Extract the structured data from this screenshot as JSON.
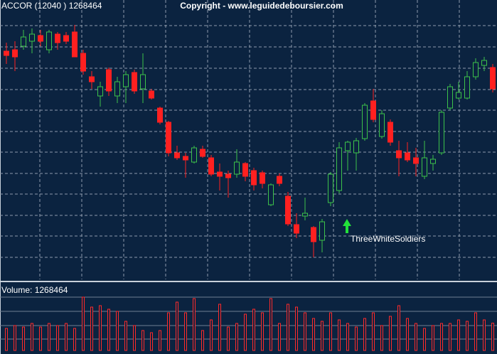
{
  "chart_data": {
    "type": "candlestick",
    "title": "ACCOR (12040 ) 1268464",
    "subtitle": "Copyright - www.leguidedeboursier.com",
    "volume_label": "Volume: 1268464",
    "annotation": "ThreeWhiteSoldiers",
    "up_color": "#3cc24a",
    "down_color": "#ff2020",
    "volume_color": "#ff2a2a",
    "annotation_color": "#22e03a",
    "grid": true,
    "ylim": [
      7,
      400
    ],
    "yticks": [
      38,
      68,
      97,
      127,
      156,
      186,
      215,
      245,
      274,
      304,
      334,
      364
    ],
    "vlim": [
      0,
      3069000
    ],
    "open": [
      328,
      330,
      335,
      342,
      350,
      330,
      352,
      350,
      355,
      325,
      292,
      265,
      302,
      265,
      278,
      298,
      275,
      272,
      248,
      228,
      185,
      180,
      172,
      190,
      178,
      158,
      155,
      155,
      170,
      160,
      157,
      112,
      152,
      124,
      84,
      96,
      80,
      62,
      115,
      132,
      188,
      185,
      205,
      258,
      208,
      228,
      188,
      185,
      178,
      152,
      170,
      185,
      248,
      262,
      262,
      292,
      308,
      305
    ],
    "high": [
      340,
      342,
      358,
      360,
      358,
      358,
      355,
      355,
      365,
      330,
      300,
      285,
      305,
      292,
      300,
      302,
      325,
      275,
      250,
      230,
      195,
      185,
      195,
      195,
      182,
      170,
      160,
      190,
      172,
      164,
      160,
      142,
      156,
      130,
      100,
      122,
      82,
      92,
      158,
      200,
      202,
      206,
      255,
      275,
      245,
      232,
      202,
      200,
      192,
      202,
      182,
      245,
      282,
      285,
      300,
      318,
      320,
      310
    ],
    "low": [
      310,
      300,
      330,
      325,
      335,
      325,
      330,
      338,
      320,
      295,
      275,
      250,
      265,
      255,
      255,
      268,
      255,
      260,
      225,
      180,
      175,
      150,
      170,
      178,
      152,
      132,
      122,
      150,
      145,
      132,
      135,
      110,
      138,
      82,
      65,
      90,
      38,
      45,
      110,
      128,
      160,
      160,
      202,
      228,
      205,
      195,
      152,
      172,
      152,
      148,
      160,
      182,
      245,
      260,
      260,
      288,
      300,
      270
    ],
    "close": [
      322,
      320,
      348,
      352,
      342,
      355,
      340,
      342,
      320,
      300,
      285,
      278,
      272,
      285,
      295,
      272,
      295,
      262,
      228,
      185,
      178,
      175,
      192,
      180,
      155,
      152,
      150,
      172,
      152,
      140,
      142,
      140,
      142,
      85,
      72,
      100,
      60,
      88,
      155,
      192,
      200,
      202,
      252,
      232,
      240,
      200,
      178,
      175,
      170,
      178,
      176,
      242,
      278,
      270,
      292,
      312,
      315,
      275
    ],
    "volume": [
      1023000,
      1155000,
      1089000,
      1254000,
      1089000,
      1254000,
      1155000,
      1254000,
      1023000,
      2475000,
      2013000,
      2079000,
      1914000,
      1815000,
      1353000,
      1155000,
      924000,
      825000,
      924000,
      1749000,
      2244000,
      1749000,
      2409000,
      924000,
      1419000,
      2145000,
      1089000,
      1254000,
      1683000,
      1914000,
      1749000,
      2409000,
      1254000,
      2145000,
      2013000,
      1749000,
      1485000,
      1353000,
      1749000,
      1419000,
      1254000,
      1089000,
      1485000,
      1749000,
      1155000,
      1584000,
      2079000,
      1485000,
      1254000,
      1023000,
      1155000,
      1254000,
      1254000,
      1419000,
      1353000,
      1749000,
      1419000,
      1268464
    ]
  }
}
